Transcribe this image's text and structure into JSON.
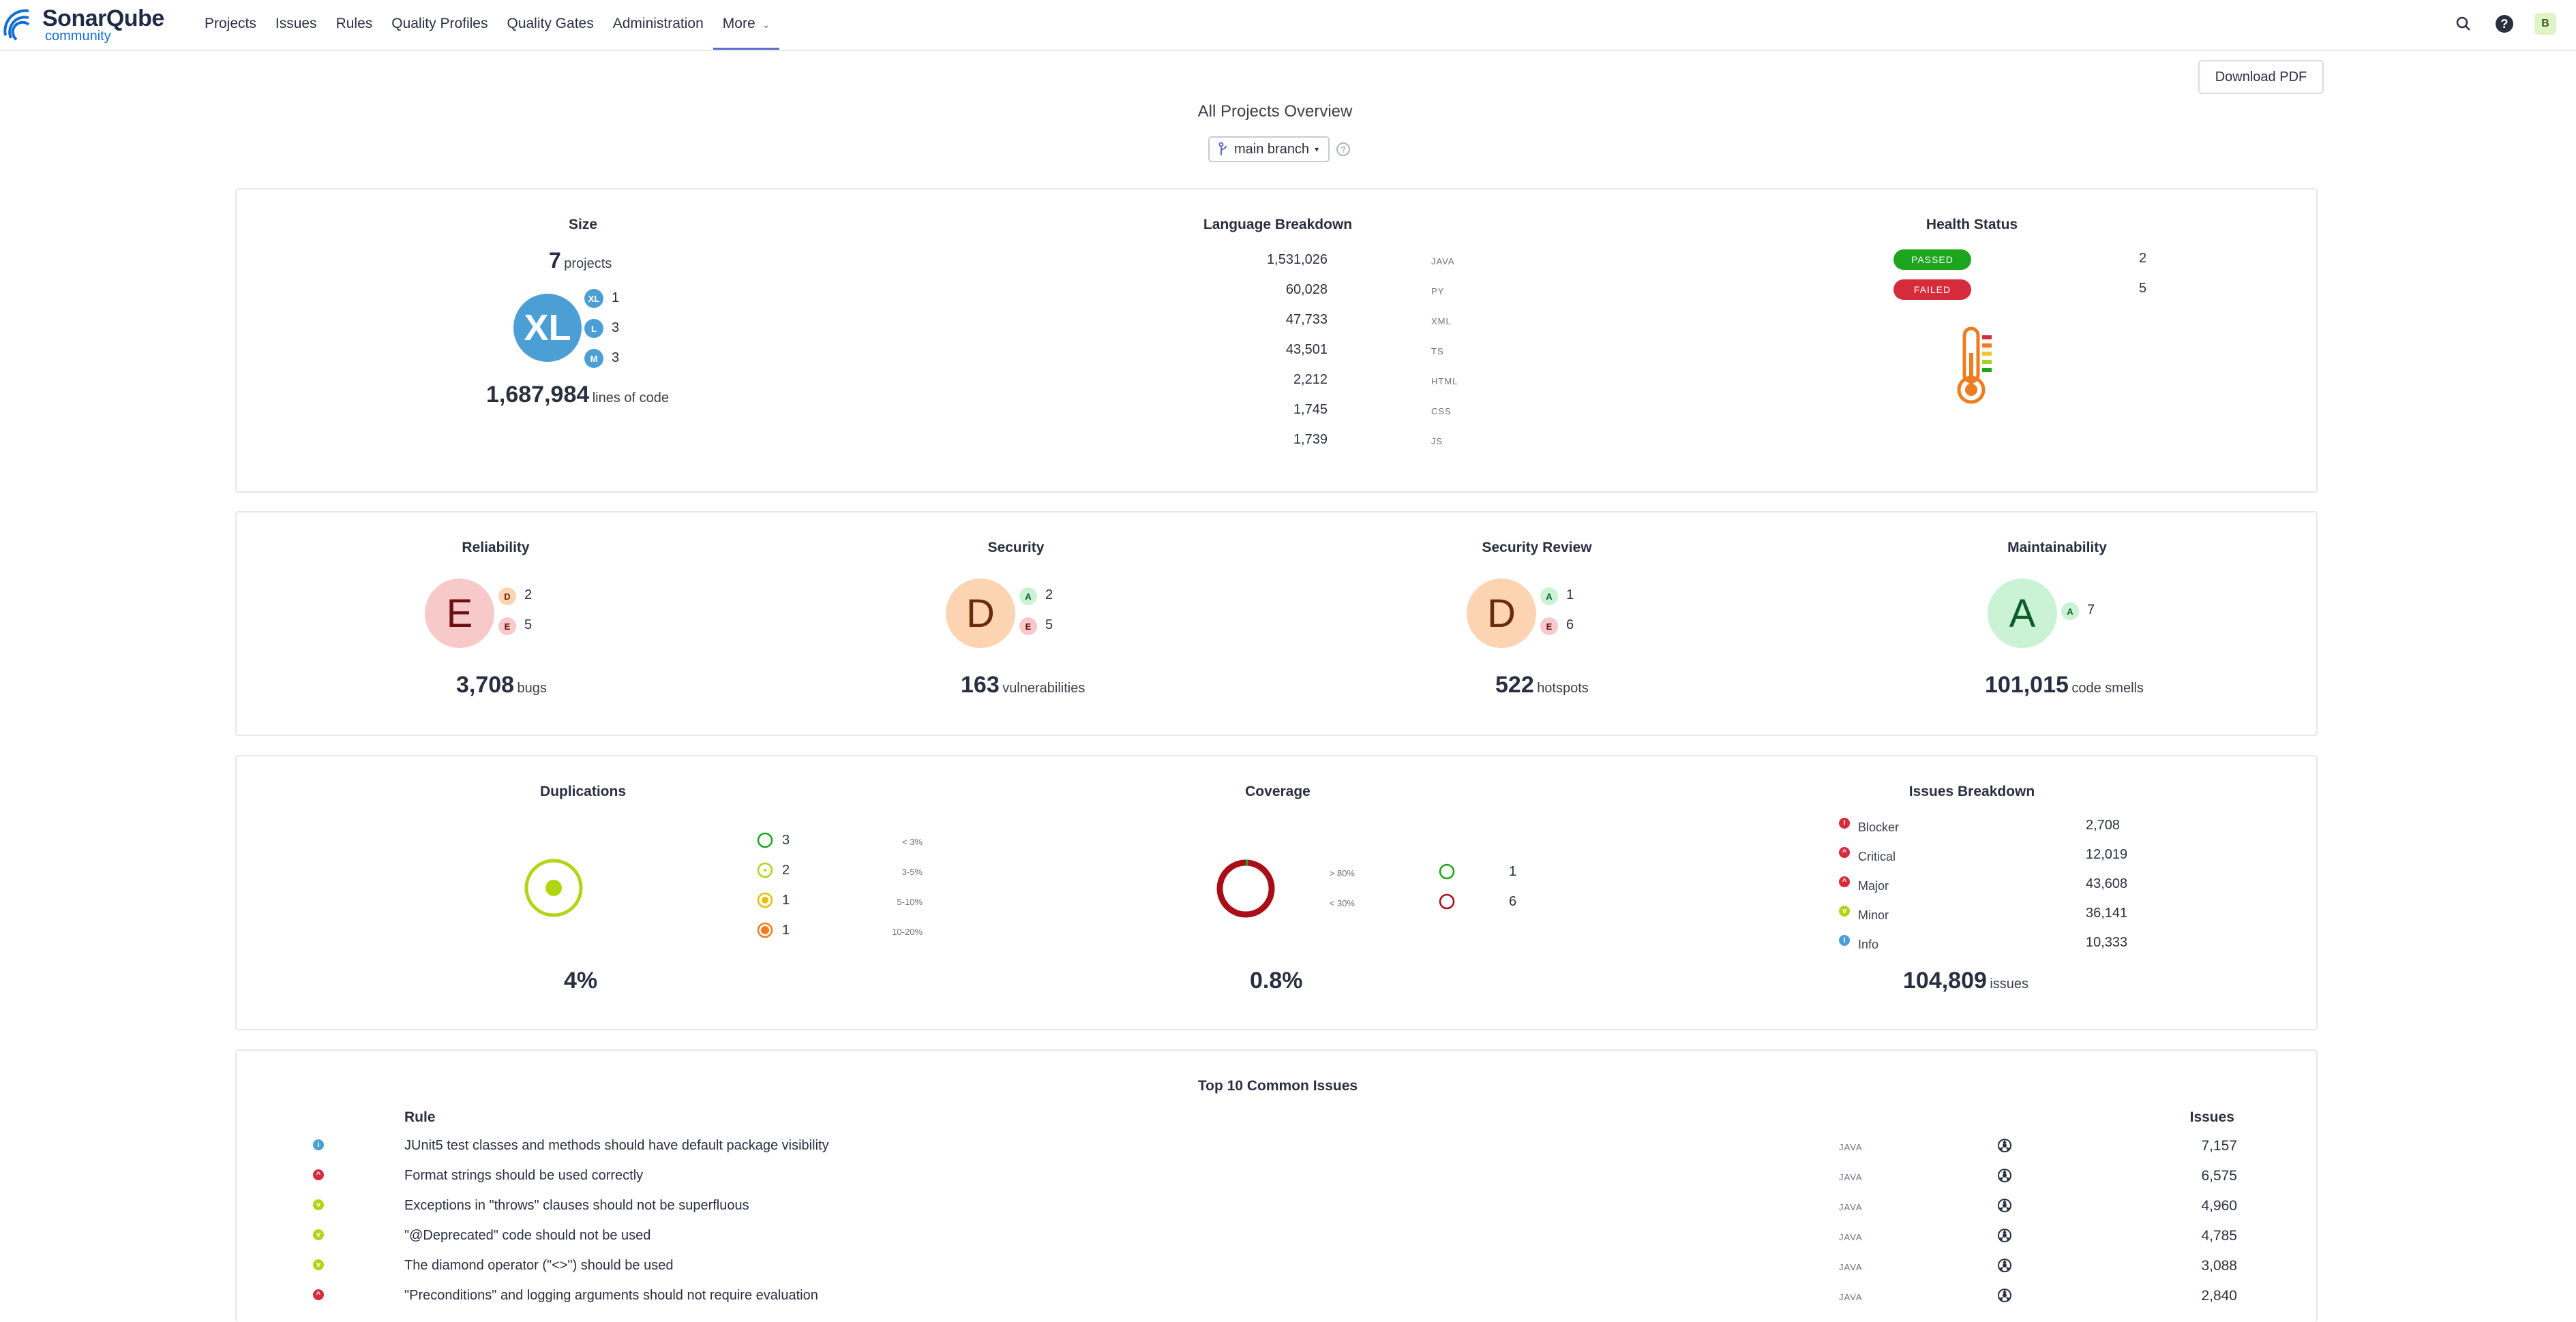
{
  "brand": {
    "name": "SonarQube",
    "edition": "community"
  },
  "nav": {
    "items": [
      "Projects",
      "Issues",
      "Rules",
      "Quality Profiles",
      "Quality Gates",
      "Administration"
    ],
    "more_label": "More",
    "avatar_initial": "B"
  },
  "header": {
    "download_label": "Download PDF",
    "title": "All Projects Overview",
    "branch_label": "main branch"
  },
  "size": {
    "title": "Size",
    "project_count": "7",
    "projects_unit": "projects",
    "big_badge": "XL",
    "breakdown": [
      {
        "label": "XL",
        "count": "1"
      },
      {
        "label": "L",
        "count": "3"
      },
      {
        "label": "M",
        "count": "3"
      }
    ],
    "loc": "1,687,984",
    "loc_unit": "lines of code"
  },
  "languages": {
    "title": "Language Breakdown",
    "rows": [
      {
        "value": "1,531,026",
        "lang": "JAVA"
      },
      {
        "value": "60,028",
        "lang": "PY"
      },
      {
        "value": "47,733",
        "lang": "XML"
      },
      {
        "value": "43,501",
        "lang": "TS"
      },
      {
        "value": "2,212",
        "lang": "HTML"
      },
      {
        "value": "1,745",
        "lang": "CSS"
      },
      {
        "value": "1,739",
        "lang": "JS"
      }
    ]
  },
  "health": {
    "title": "Health Status",
    "passed_label": "PASSED",
    "passed_count": "2",
    "failed_label": "FAILED",
    "failed_count": "5",
    "colors": {
      "passed": "#1ea51e",
      "failed": "#d52b3a"
    }
  },
  "ratings": [
    {
      "title": "Reliability",
      "rating": "E",
      "breakdown": [
        {
          "r": "D",
          "c": "2"
        },
        {
          "r": "E",
          "c": "5"
        }
      ],
      "value": "3,708",
      "unit": "bugs"
    },
    {
      "title": "Security",
      "rating": "D",
      "breakdown": [
        {
          "r": "A",
          "c": "2"
        },
        {
          "r": "E",
          "c": "5"
        }
      ],
      "value": "163",
      "unit": "vulnerabilities"
    },
    {
      "title": "Security Review",
      "rating": "D",
      "breakdown": [
        {
          "r": "A",
          "c": "1"
        },
        {
          "r": "E",
          "c": "6"
        }
      ],
      "value": "522",
      "unit": "hotspots"
    },
    {
      "title": "Maintainability",
      "rating": "A",
      "breakdown": [
        {
          "r": "A",
          "c": "7"
        }
      ],
      "value": "101,015",
      "unit": "code smells"
    }
  ],
  "duplications": {
    "title": "Duplications",
    "value": "4%",
    "buckets": [
      {
        "label": "< 3%",
        "count": "3"
      },
      {
        "label": "3-5%",
        "count": "2"
      },
      {
        "label": "5-10%",
        "count": "1"
      },
      {
        "label": "10-20%",
        "count": "1"
      }
    ]
  },
  "coverage": {
    "title": "Coverage",
    "value": "0.8%",
    "fraction": 0.008,
    "buckets": [
      {
        "label": "> 80%",
        "count": "1"
      },
      {
        "label": "< 30%",
        "count": "6"
      }
    ]
  },
  "issues_breakdown": {
    "title": "Issues Breakdown",
    "rows": [
      {
        "label": "Blocker",
        "count": "2,708"
      },
      {
        "label": "Critical",
        "count": "12,019"
      },
      {
        "label": "Major",
        "count": "43,608"
      },
      {
        "label": "Minor",
        "count": "36,141"
      },
      {
        "label": "Info",
        "count": "10,333"
      }
    ],
    "total": "104,809",
    "total_unit": "issues"
  },
  "top_issues": {
    "title": "Top 10 Common Issues",
    "col_rule": "Rule",
    "col_issues": "Issues",
    "rows": [
      {
        "severity": "info",
        "rule": "JUnit5 test classes and methods should have default package visibility",
        "lang": "JAVA",
        "count": "7,157"
      },
      {
        "severity": "critical",
        "rule": "Format strings should be used correctly",
        "lang": "JAVA",
        "count": "6,575"
      },
      {
        "severity": "minor",
        "rule": "Exceptions in \"throws\" clauses should not be superfluous",
        "lang": "JAVA",
        "count": "4,960"
      },
      {
        "severity": "minor",
        "rule": "\"@Deprecated\" code should not be used",
        "lang": "JAVA",
        "count": "4,785"
      },
      {
        "severity": "minor",
        "rule": "The diamond operator (\"<>\") should be used",
        "lang": "JAVA",
        "count": "3,088"
      },
      {
        "severity": "critical",
        "rule": "\"Preconditions\" and logging arguments should not require evaluation",
        "lang": "JAVA",
        "count": "2,840"
      }
    ]
  }
}
